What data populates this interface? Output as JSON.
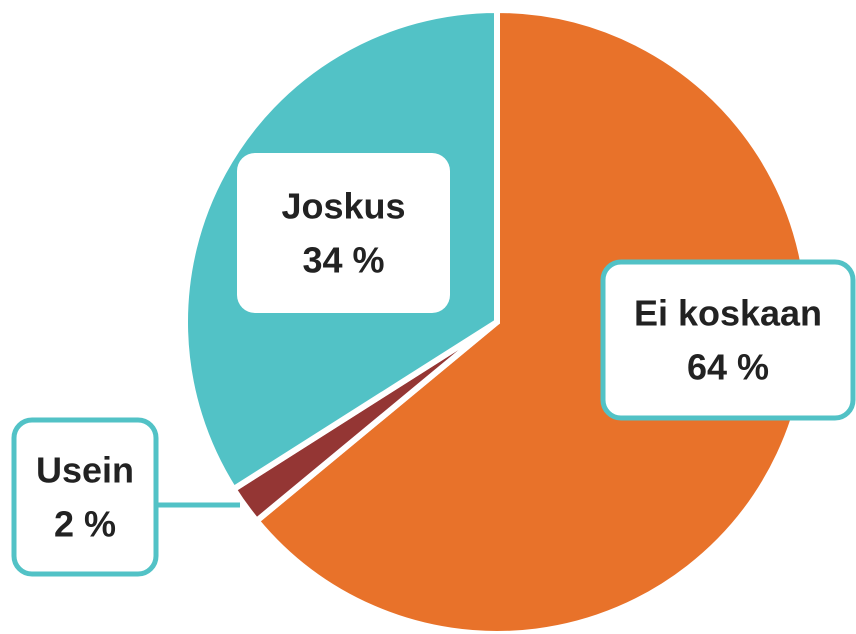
{
  "chart_data": {
    "type": "pie",
    "categories": [
      "Ei koskaan",
      "Usein",
      "Joskus"
    ],
    "values": [
      64,
      2,
      34
    ],
    "value_labels": [
      "64 %",
      "2 %",
      "34 %"
    ],
    "colors": [
      "#e8722a",
      "#943634",
      "#52c2c6"
    ]
  }
}
